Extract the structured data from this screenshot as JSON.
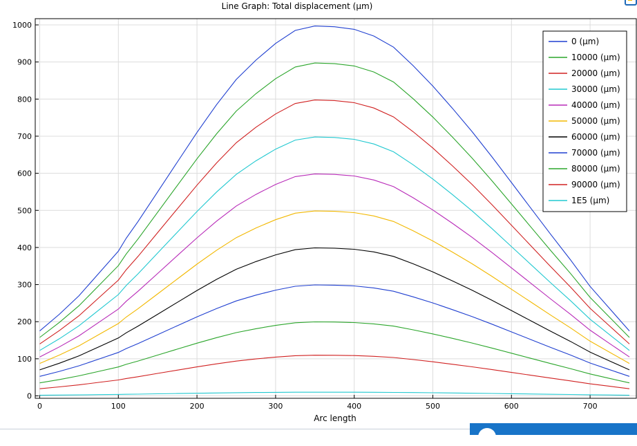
{
  "chart_data": {
    "type": "line",
    "title": "Line Graph: Total displacement (μm)",
    "xlabel": "Arc length",
    "ylabel": "",
    "xlim": [
      -5,
      755
    ],
    "ylim": [
      0,
      1000
    ],
    "xticks": [
      0,
      100,
      200,
      300,
      400,
      500,
      600,
      700
    ],
    "yticks": [
      0,
      100,
      200,
      300,
      400,
      500,
      600,
      700,
      800,
      900,
      1000
    ],
    "grid": true,
    "legend_position": "top-right",
    "x": [
      0,
      25,
      50,
      75,
      100,
      110,
      125,
      150,
      175,
      200,
      225,
      250,
      275,
      300,
      325,
      350,
      375,
      400,
      425,
      450,
      475,
      500,
      525,
      550,
      575,
      600,
      625,
      650,
      675,
      700,
      725,
      750
    ],
    "base_profile": [
      0.175,
      0.22,
      0.27,
      0.33,
      0.39,
      0.425,
      0.47,
      0.55,
      0.63,
      0.71,
      0.785,
      0.853,
      0.905,
      0.95,
      0.985,
      0.997,
      0.995,
      0.988,
      0.97,
      0.94,
      0.89,
      0.835,
      0.775,
      0.712,
      0.645,
      0.575,
      0.505,
      0.435,
      0.367,
      0.295,
      0.235,
      0.175
    ],
    "series": [
      {
        "name": "0 (μm)",
        "color": "#1f3fd0",
        "scale": 1000
      },
      {
        "name": "10000 (μm)",
        "color": "#2aa52a",
        "scale": 900
      },
      {
        "name": "20000 (μm)",
        "color": "#d02020",
        "scale": 800
      },
      {
        "name": "30000 (μm)",
        "color": "#20c8d0",
        "scale": 700
      },
      {
        "name": "40000 (μm)",
        "color": "#b82ab8",
        "scale": 600
      },
      {
        "name": "50000 (μm)",
        "color": "#f2b800",
        "scale": 500
      },
      {
        "name": "60000 (μm)",
        "color": "#000000",
        "scale": 400
      },
      {
        "name": "70000 (μm)",
        "color": "#1f3fd0",
        "scale": 300
      },
      {
        "name": "80000 (μm)",
        "color": "#2aa52a",
        "scale": 200
      },
      {
        "name": "90000 (μm)",
        "color": "#d02020",
        "scale": 110
      },
      {
        "name": "1E5 (μm)",
        "color": "#20c8d0",
        "scale": 10
      }
    ]
  }
}
